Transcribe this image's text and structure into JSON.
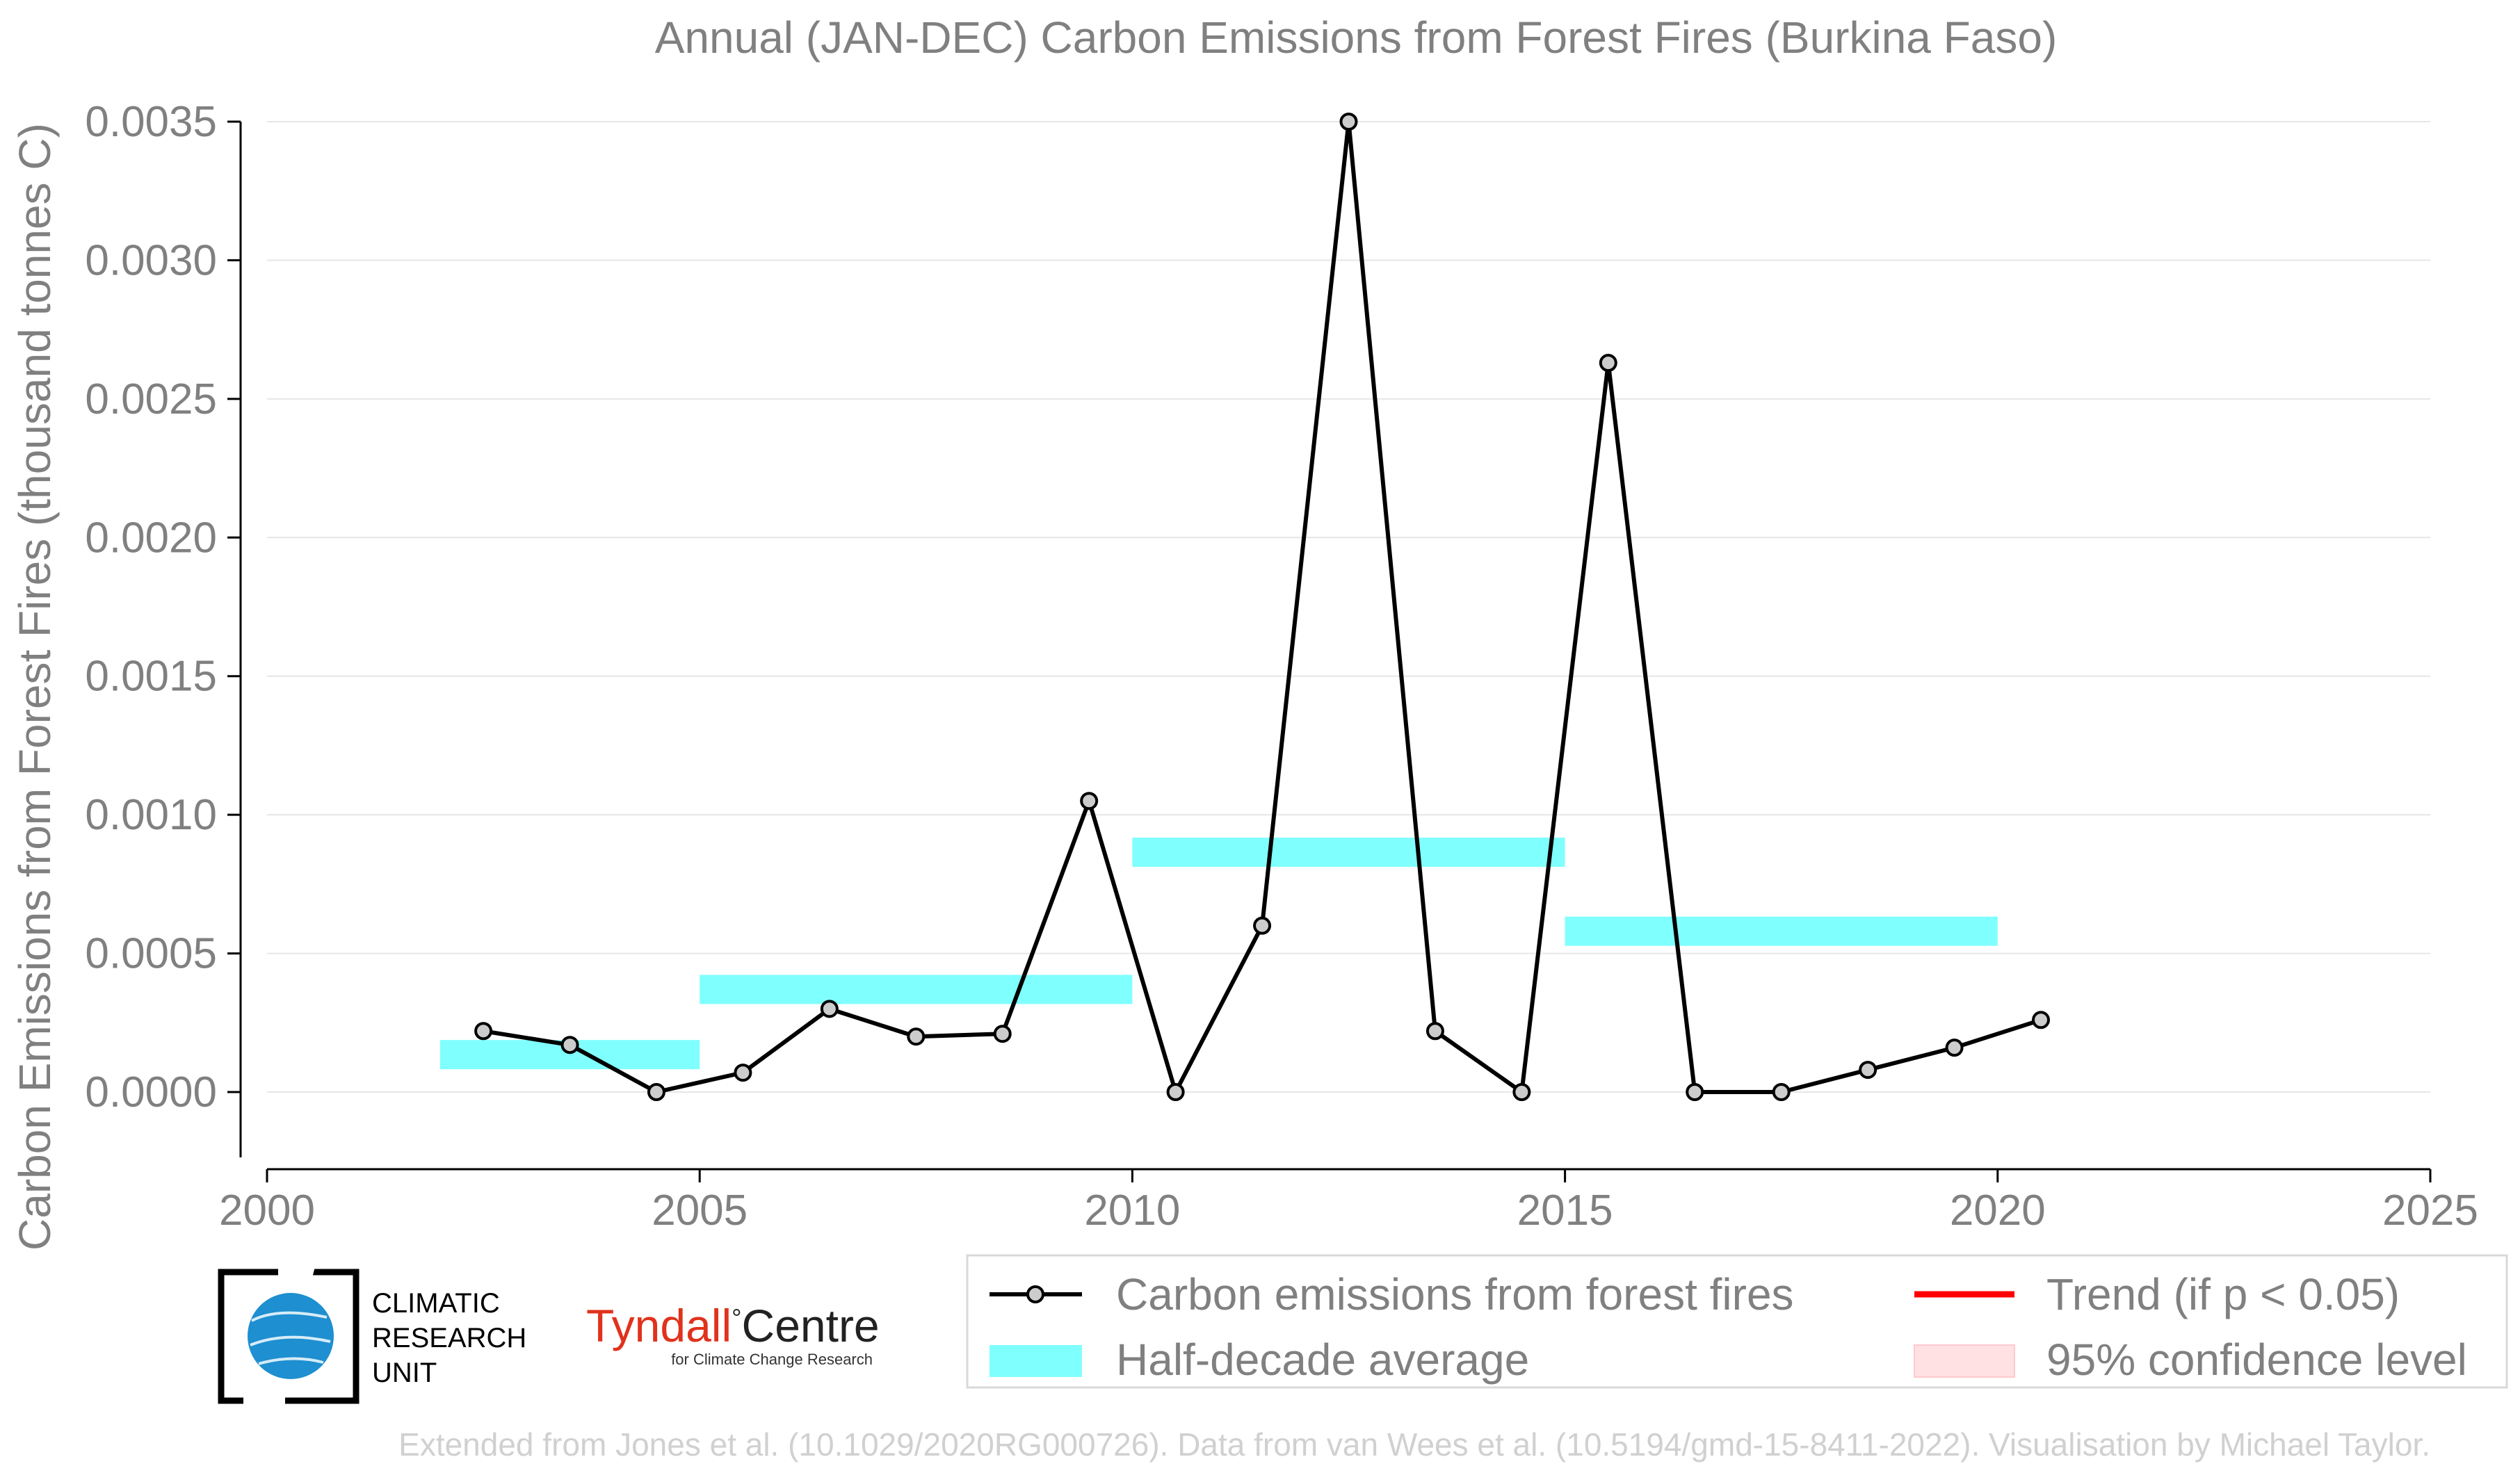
{
  "chart_data": {
    "type": "line",
    "title": "Annual (JAN-DEC) Carbon Emissions from Forest Fires (Burkina Faso)",
    "xlabel": "",
    "ylabel": "Carbon Emissions from Forest Fires (thousand tonnes C)",
    "xlim": [
      2000,
      2025
    ],
    "ylim": [
      -0.00027,
      0.0035
    ],
    "x_ticks": [
      "2000",
      "2005",
      "2010",
      "2015",
      "2020",
      "2025"
    ],
    "y_ticks": [
      "0.0000",
      "0.0005",
      "0.0010",
      "0.0015",
      "0.0020",
      "0.0025",
      "0.0030",
      "0.0035"
    ],
    "grid": "horizontal",
    "legend_placement": "bottom-right",
    "colors": {
      "line": "#000000",
      "marker_fill": "#cccccc",
      "half_decade": "#80ffff",
      "trend": "#ff0000",
      "confidence": "#ffe0e3",
      "grid": "#e6e6e6",
      "text": "#808080"
    },
    "series": [
      {
        "name": "Carbon emissions from forest fires",
        "x": [
          2002.5,
          2003.5,
          2004.5,
          2005.5,
          2006.5,
          2007.5,
          2008.5,
          2009.5,
          2010.5,
          2011.5,
          2012.5,
          2013.5,
          2014.5,
          2015.5,
          2016.5,
          2017.5,
          2018.5,
          2019.5,
          2020.5
        ],
        "values": [
          0.00022,
          0.00017,
          0.0,
          7e-05,
          0.0003,
          0.0002,
          0.00021,
          0.00105,
          0.0,
          0.0006,
          0.0035,
          0.00022,
          0.0,
          0.00263,
          0.0,
          0.0,
          8e-05,
          0.00016,
          0.00026
        ]
      },
      {
        "name": "Half-decade average",
        "segments": [
          {
            "x_start": 2002,
            "x_end": 2005,
            "value": 0.000135
          },
          {
            "x_start": 2005,
            "x_end": 2010,
            "value": 0.00037
          },
          {
            "x_start": 2010,
            "x_end": 2015,
            "value": 0.000865
          },
          {
            "x_start": 2015,
            "x_end": 2020,
            "value": 0.00058
          }
        ]
      }
    ],
    "legend": [
      {
        "label": "Carbon emissions from forest fires",
        "style": "line-marker"
      },
      {
        "label": "Trend (if p < 0.05)",
        "style": "red-line"
      },
      {
        "label": "Half-decade average",
        "style": "cyan-bar"
      },
      {
        "label": "95% confidence level",
        "style": "pink-patch"
      }
    ]
  },
  "logos": {
    "cru": [
      "CLIMATIC",
      "RESEARCH",
      "UNIT"
    ],
    "tyndall_main_a": "Tyndall",
    "tyndall_degree": "°",
    "tyndall_main_b": "Centre",
    "tyndall_sub": "for Climate Change Research"
  },
  "credit": "Extended from Jones et al. (10.1029/2020RG000726). Data from van Wees et al. (10.5194/gmd-15-8411-2022). Visualisation by Michael Taylor."
}
